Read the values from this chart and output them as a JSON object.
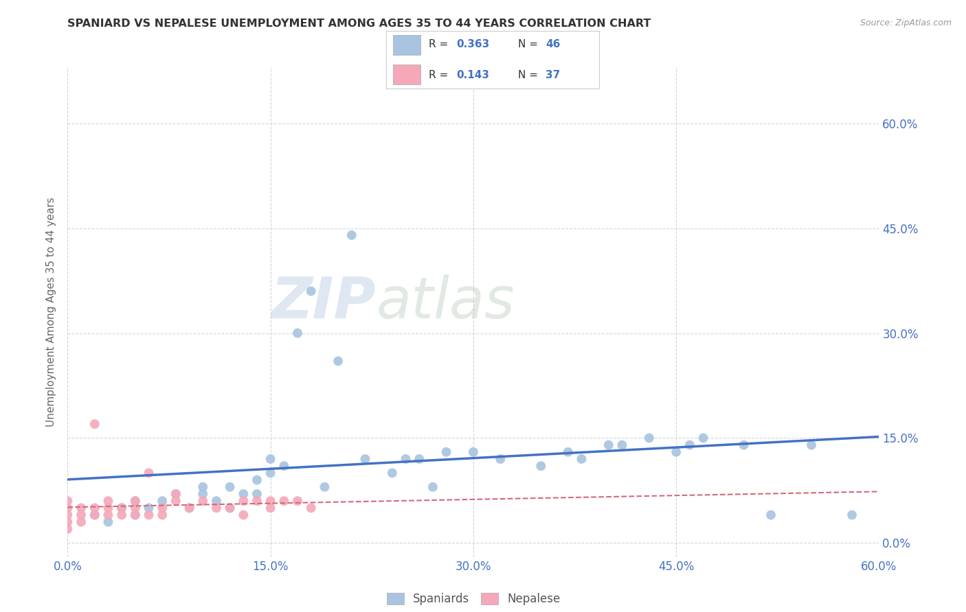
{
  "title": "SPANIARD VS NEPALESE UNEMPLOYMENT AMONG AGES 35 TO 44 YEARS CORRELATION CHART",
  "source": "Source: ZipAtlas.com",
  "ylabel": "Unemployment Among Ages 35 to 44 years",
  "xlim": [
    0.0,
    0.6
  ],
  "ylim": [
    -0.02,
    0.68
  ],
  "grid_color": "#cccccc",
  "background_color": "#ffffff",
  "spaniard_color": "#a8c4e0",
  "nepalese_color": "#f4a8b8",
  "spaniard_line_color": "#4472c4",
  "nepalese_line_color": "#d4687a",
  "R_spaniard": 0.363,
  "N_spaniard": 46,
  "R_nepalese": 0.143,
  "N_nepalese": 37,
  "watermark_zip": "ZIP",
  "watermark_atlas": "atlas",
  "spaniard_x": [
    0.02,
    0.03,
    0.04,
    0.05,
    0.05,
    0.06,
    0.07,
    0.08,
    0.09,
    0.1,
    0.1,
    0.11,
    0.12,
    0.12,
    0.13,
    0.14,
    0.14,
    0.15,
    0.15,
    0.16,
    0.17,
    0.18,
    0.19,
    0.2,
    0.21,
    0.22,
    0.24,
    0.25,
    0.26,
    0.27,
    0.28,
    0.3,
    0.32,
    0.35,
    0.37,
    0.38,
    0.4,
    0.41,
    0.43,
    0.45,
    0.46,
    0.47,
    0.5,
    0.52,
    0.55,
    0.58
  ],
  "spaniard_y": [
    0.04,
    0.03,
    0.05,
    0.04,
    0.06,
    0.05,
    0.06,
    0.07,
    0.05,
    0.07,
    0.08,
    0.06,
    0.05,
    0.08,
    0.07,
    0.07,
    0.09,
    0.1,
    0.12,
    0.11,
    0.3,
    0.36,
    0.08,
    0.26,
    0.44,
    0.12,
    0.1,
    0.12,
    0.12,
    0.08,
    0.13,
    0.13,
    0.12,
    0.11,
    0.13,
    0.12,
    0.14,
    0.14,
    0.15,
    0.13,
    0.14,
    0.15,
    0.14,
    0.04,
    0.14,
    0.04
  ],
  "nepalese_x": [
    0.0,
    0.0,
    0.0,
    0.0,
    0.0,
    0.01,
    0.01,
    0.01,
    0.02,
    0.02,
    0.02,
    0.03,
    0.03,
    0.03,
    0.04,
    0.04,
    0.05,
    0.05,
    0.05,
    0.06,
    0.06,
    0.07,
    0.07,
    0.08,
    0.08,
    0.09,
    0.1,
    0.11,
    0.12,
    0.13,
    0.13,
    0.14,
    0.15,
    0.15,
    0.16,
    0.17,
    0.18
  ],
  "nepalese_y": [
    0.02,
    0.03,
    0.04,
    0.05,
    0.06,
    0.03,
    0.04,
    0.05,
    0.04,
    0.05,
    0.17,
    0.04,
    0.05,
    0.06,
    0.04,
    0.05,
    0.04,
    0.05,
    0.06,
    0.1,
    0.04,
    0.04,
    0.05,
    0.06,
    0.07,
    0.05,
    0.06,
    0.05,
    0.05,
    0.06,
    0.04,
    0.06,
    0.05,
    0.06,
    0.06,
    0.06,
    0.05
  ]
}
